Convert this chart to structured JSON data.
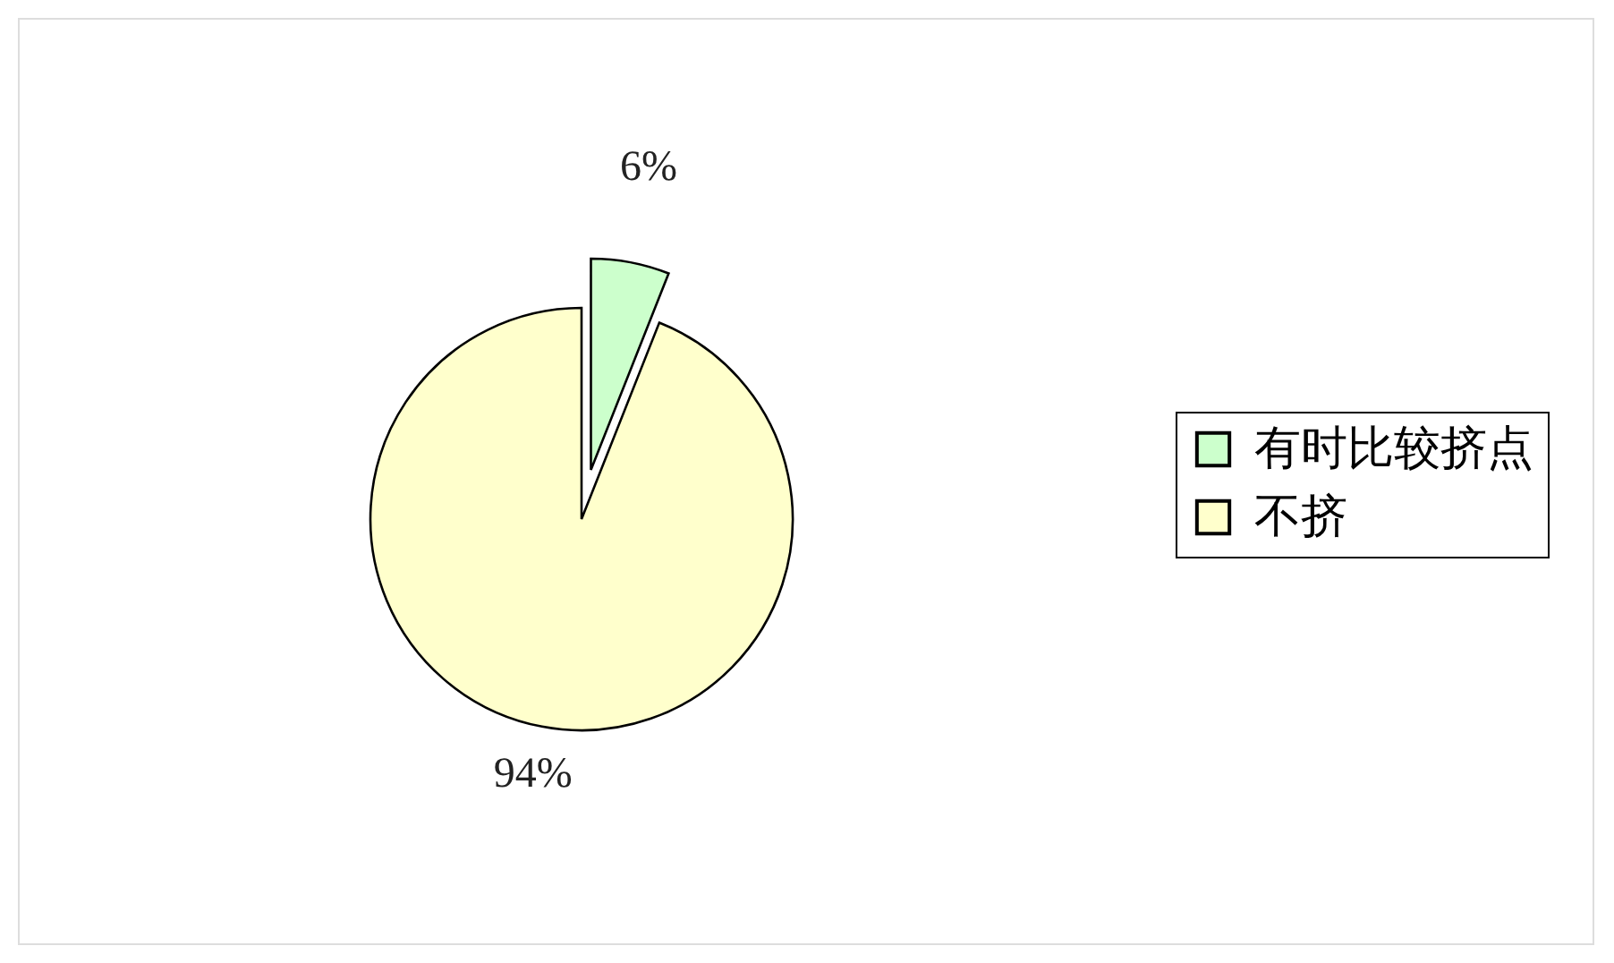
{
  "chart_data": {
    "type": "pie",
    "categories": [
      "有时比较挤点",
      "不挤"
    ],
    "values": [
      6,
      94
    ],
    "colors": [
      "#ccffcc",
      "#ffffcc"
    ],
    "value_labels": [
      "6%",
      "94%"
    ],
    "legend": "right"
  }
}
